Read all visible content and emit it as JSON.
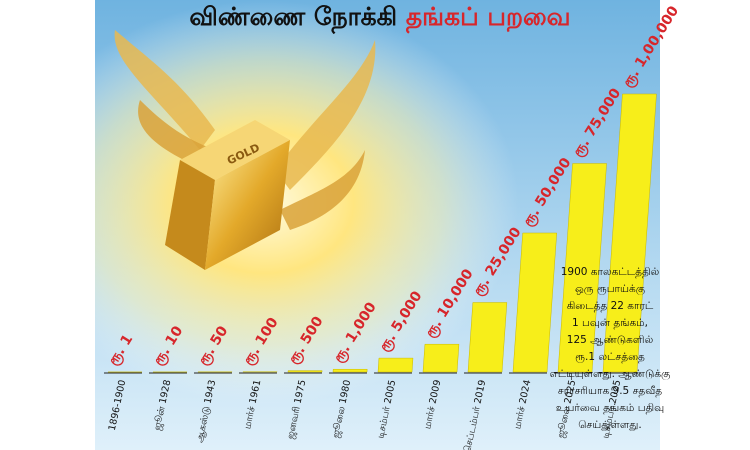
{
  "chart_data": {
    "type": "bar",
    "title_part1": "விண்ணை நோக்கி",
    "title_part2": "தங்கப் பறவை",
    "illustration_label": "GOLD",
    "categories": [
      "1896-1900",
      "ஜூன் 1928",
      "ஆகஸ்டு 1943",
      "மார்ச் 1961",
      "ஜனவரி 1975",
      "ஜூலை 1980",
      "டிசம்பர் 2005",
      "மார்ச் 2009",
      "செப்டம்பர் 2019",
      "மார்ச் 2024",
      "ஜூலை 2025",
      "டிசம்பர் 2025"
    ],
    "values": [
      1,
      10,
      50,
      100,
      500,
      1000,
      5000,
      10000,
      25000,
      50000,
      75000,
      100000
    ],
    "value_labels": [
      "ரூ. 1",
      "ரூ. 10",
      "ரூ. 50",
      "ரூ. 100",
      "ரூ. 500",
      "ரூ. 1,000",
      "ரூ. 5,000",
      "ரூ. 10,000",
      "ரூ. 25,000",
      "ரூ. 50,000",
      "ரூ. 75,000",
      "ரூ. 1,00,000"
    ],
    "color": "#f7ee1a",
    "label_color": "#d7262b",
    "annotation": [
      "1900 காலகட்டத்தில்",
      "ஒரு ரூபாய்க்கு",
      "கிடைத்த 22 காரட்",
      "1 பவுன் தங்கம்,",
      "125 ஆண்டுகளில்",
      "ரூ.1 லட்சத்தை",
      "எட்டியுள்ளது. ஆண்டுக்கு",
      "சராசரியாக 9.5 சதவீத",
      "உயர்வை தங்கம் பதிவு",
      "செய்துள்ளது."
    ]
  }
}
